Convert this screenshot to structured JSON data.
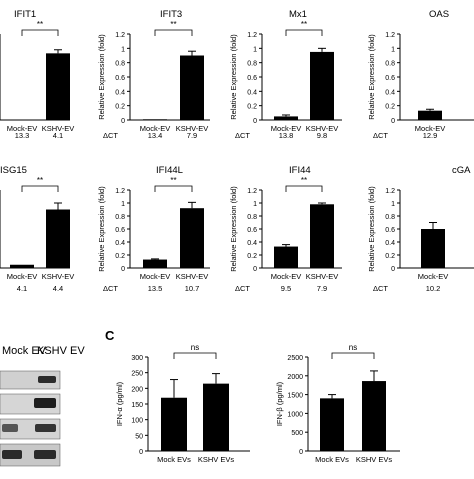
{
  "panel_label_c": "C",
  "chart_data": [
    {
      "type": "bar",
      "title": "IFIT1",
      "ylabel": "",
      "ylim": [
        0,
        1.2
      ],
      "yticks": [],
      "categories": [
        "Mock-EV",
        "KSHV-EV"
      ],
      "values": [
        0.0,
        0.93
      ],
      "errors": [
        0,
        0.05
      ],
      "sig": "**",
      "dct_label": "",
      "dct": [
        "13.3",
        "4.1"
      ]
    },
    {
      "type": "bar",
      "title": "IFIT3",
      "ylabel": "Relative Expression (fold)",
      "ylim": [
        0,
        1.2
      ],
      "yticks": [
        "0",
        "0.2",
        "0.4",
        "0.6",
        "0.8",
        "1",
        "1.2"
      ],
      "categories": [
        "Mock-EV",
        "KSHV-EV"
      ],
      "values": [
        0.01,
        0.9
      ],
      "errors": [
        0,
        0.06
      ],
      "sig": "**",
      "dct_label": "ΔCT",
      "dct": [
        "13.4",
        "7.9"
      ]
    },
    {
      "type": "bar",
      "title": "Mx1",
      "ylabel": "Relative Expression (fold)",
      "ylim": [
        0,
        1.2
      ],
      "yticks": [
        "0",
        "0.2",
        "0.4",
        "0.6",
        "0.8",
        "1",
        "1.2"
      ],
      "categories": [
        "Mock-EV",
        "KSHV-EV"
      ],
      "values": [
        0.05,
        0.95
      ],
      "errors": [
        0.02,
        0.05
      ],
      "sig": "**",
      "dct_label": "ΔCT",
      "dct": [
        "13.8",
        "9.8"
      ]
    },
    {
      "type": "bar",
      "title": "OAS",
      "ylabel": "Relative Expression (fold)",
      "ylim": [
        0,
        1.2
      ],
      "yticks": [
        "0",
        "0.2",
        "0.4",
        "0.6",
        "0.8",
        "1",
        "1.2"
      ],
      "categories": [
        "Mock-EV"
      ],
      "values": [
        0.13
      ],
      "errors": [
        0.02
      ],
      "sig": "",
      "dct_label": "ΔCT",
      "dct": [
        "12.9"
      ]
    },
    {
      "type": "bar",
      "title": "ISG15",
      "ylabel": "",
      "ylim": [
        0,
        1.2
      ],
      "yticks": [],
      "categories": [
        "Mock-EV",
        "KSHV-EV"
      ],
      "values": [
        0.05,
        0.9
      ],
      "errors": [
        0,
        0.1
      ],
      "sig": "**",
      "dct_label": "",
      "dct": [
        "4.1",
        "4.4"
      ]
    },
    {
      "type": "bar",
      "title": "IFI44L",
      "ylabel": "Relative Expression (fold)",
      "ylim": [
        0,
        1.2
      ],
      "yticks": [
        "0",
        "0.2",
        "0.4",
        "0.6",
        "0.8",
        "1",
        "1.2"
      ],
      "categories": [
        "Mock-EV",
        "KSHV-EV"
      ],
      "values": [
        0.13,
        0.92
      ],
      "errors": [
        0.01,
        0.09
      ],
      "sig": "**",
      "dct_label": "ΔCT",
      "dct": [
        "13.5",
        "10.7"
      ]
    },
    {
      "type": "bar",
      "title": "IFI44",
      "ylabel": "Relative Expression (fold)",
      "ylim": [
        0,
        1.2
      ],
      "yticks": [
        "0",
        "0.2",
        "0.4",
        "0.6",
        "0.8",
        "1",
        "1.2"
      ],
      "categories": [
        "Mock-EV",
        "KSHV-EV"
      ],
      "values": [
        0.33,
        0.98
      ],
      "errors": [
        0.03,
        0.02
      ],
      "sig": "**",
      "dct_label": "ΔCT",
      "dct": [
        "9.5",
        "7.9"
      ]
    },
    {
      "type": "bar",
      "title": "cGA",
      "ylabel": "Relative Expression (fold)",
      "ylim": [
        0,
        1.2
      ],
      "yticks": [
        "0",
        "0.2",
        "0.4",
        "0.6",
        "0.8",
        "1",
        "1.2"
      ],
      "categories": [
        "Mock-EV"
      ],
      "values": [
        0.6
      ],
      "errors": [
        0.1
      ],
      "sig": "",
      "dct_label": "ΔCT",
      "dct": [
        "10.2"
      ]
    },
    {
      "type": "bar",
      "title": "",
      "ylabel": "IFN-α (pg/ml)",
      "ylim": [
        0,
        300
      ],
      "yticks": [
        "0",
        "50",
        "100",
        "150",
        "200",
        "250",
        "300"
      ],
      "categories": [
        "Mock EVs",
        "KSHV EVs"
      ],
      "values": [
        170,
        215
      ],
      "errors": [
        58,
        32
      ],
      "sig": "ns",
      "dct_label": "",
      "dct": []
    },
    {
      "type": "bar",
      "title": "",
      "ylabel": "IFN-β (pg/ml)",
      "ylim": [
        0,
        2500
      ],
      "yticks": [
        "0",
        "500",
        "1000",
        "1500",
        "2000",
        "2500"
      ],
      "categories": [
        "Mock EVs",
        "KSHV EVs"
      ],
      "values": [
        1400,
        1860
      ],
      "errors": [
        100,
        270
      ],
      "sig": "ns",
      "dct_label": "",
      "dct": []
    }
  ],
  "blot": {
    "labels": [
      "Mock EV",
      "KSHV EV"
    ]
  }
}
